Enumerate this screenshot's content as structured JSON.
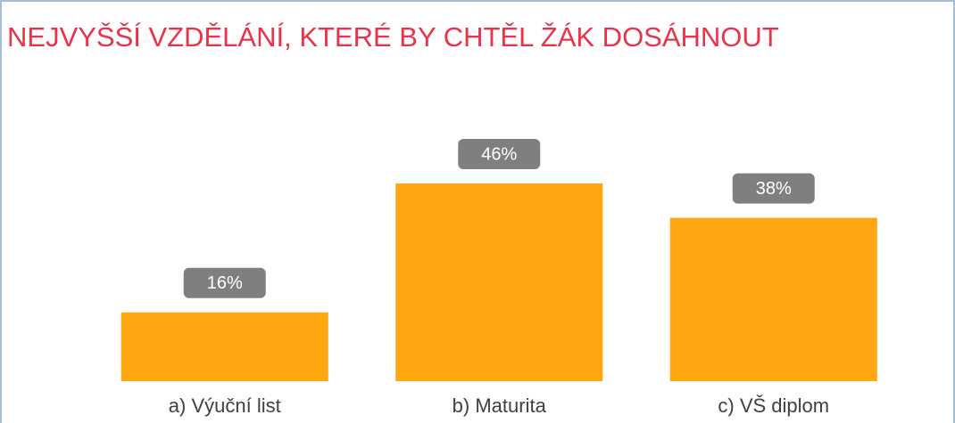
{
  "chart_data": {
    "type": "bar",
    "title": "NEJVYŠŠÍ VZDĚLÁNÍ, KTERÉ BY CHTĚL ŽÁK DOSÁHNOUT",
    "categories": [
      "a) Výuční list",
      "b) Maturita",
      "c) VŠ diplom"
    ],
    "values": [
      16,
      46,
      38
    ],
    "value_labels": [
      "16%",
      "46%",
      "38%"
    ],
    "color": "#ffa610"
  }
}
